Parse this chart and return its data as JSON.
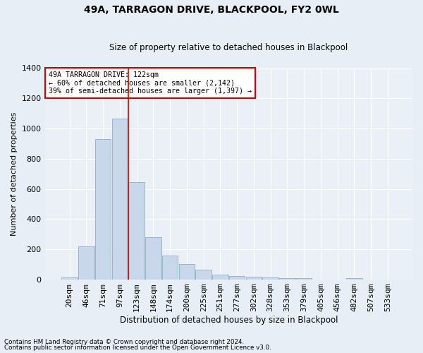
{
  "title": "49A, TARRAGON DRIVE, BLACKPOOL, FY2 0WL",
  "subtitle": "Size of property relative to detached houses in Blackpool",
  "xlabel": "Distribution of detached houses by size in Blackpool",
  "ylabel": "Number of detached properties",
  "bar_color": "#c8d8ea",
  "bar_edge_color": "#8aafc8",
  "background_color": "#e8eef5",
  "plot_bg_color": "#eaf0f6",
  "grid_color": "#ffffff",
  "categories": [
    "20sqm",
    "46sqm",
    "71sqm",
    "97sqm",
    "123sqm",
    "148sqm",
    "174sqm",
    "200sqm",
    "225sqm",
    "251sqm",
    "277sqm",
    "302sqm",
    "328sqm",
    "353sqm",
    "379sqm",
    "405sqm",
    "456sqm",
    "482sqm",
    "507sqm",
    "533sqm"
  ],
  "values": [
    15,
    220,
    930,
    1065,
    645,
    280,
    158,
    103,
    65,
    35,
    22,
    18,
    15,
    12,
    10,
    0,
    0,
    12,
    0,
    0
  ],
  "ylim": [
    0,
    1400
  ],
  "yticks": [
    0,
    200,
    400,
    600,
    800,
    1000,
    1200,
    1400
  ],
  "annotation_text1": "49A TARRAGON DRIVE: 122sqm",
  "annotation_text2": "← 60% of detached houses are smaller (2,142)",
  "annotation_text3": "39% of semi-detached houses are larger (1,397) →",
  "annotation_box_color": "#ffffff",
  "annotation_box_edge": "#cc0000",
  "red_line_color": "#cc0000",
  "footer1": "Contains HM Land Registry data © Crown copyright and database right 2024.",
  "footer2": "Contains public sector information licensed under the Open Government Licence v3.0."
}
